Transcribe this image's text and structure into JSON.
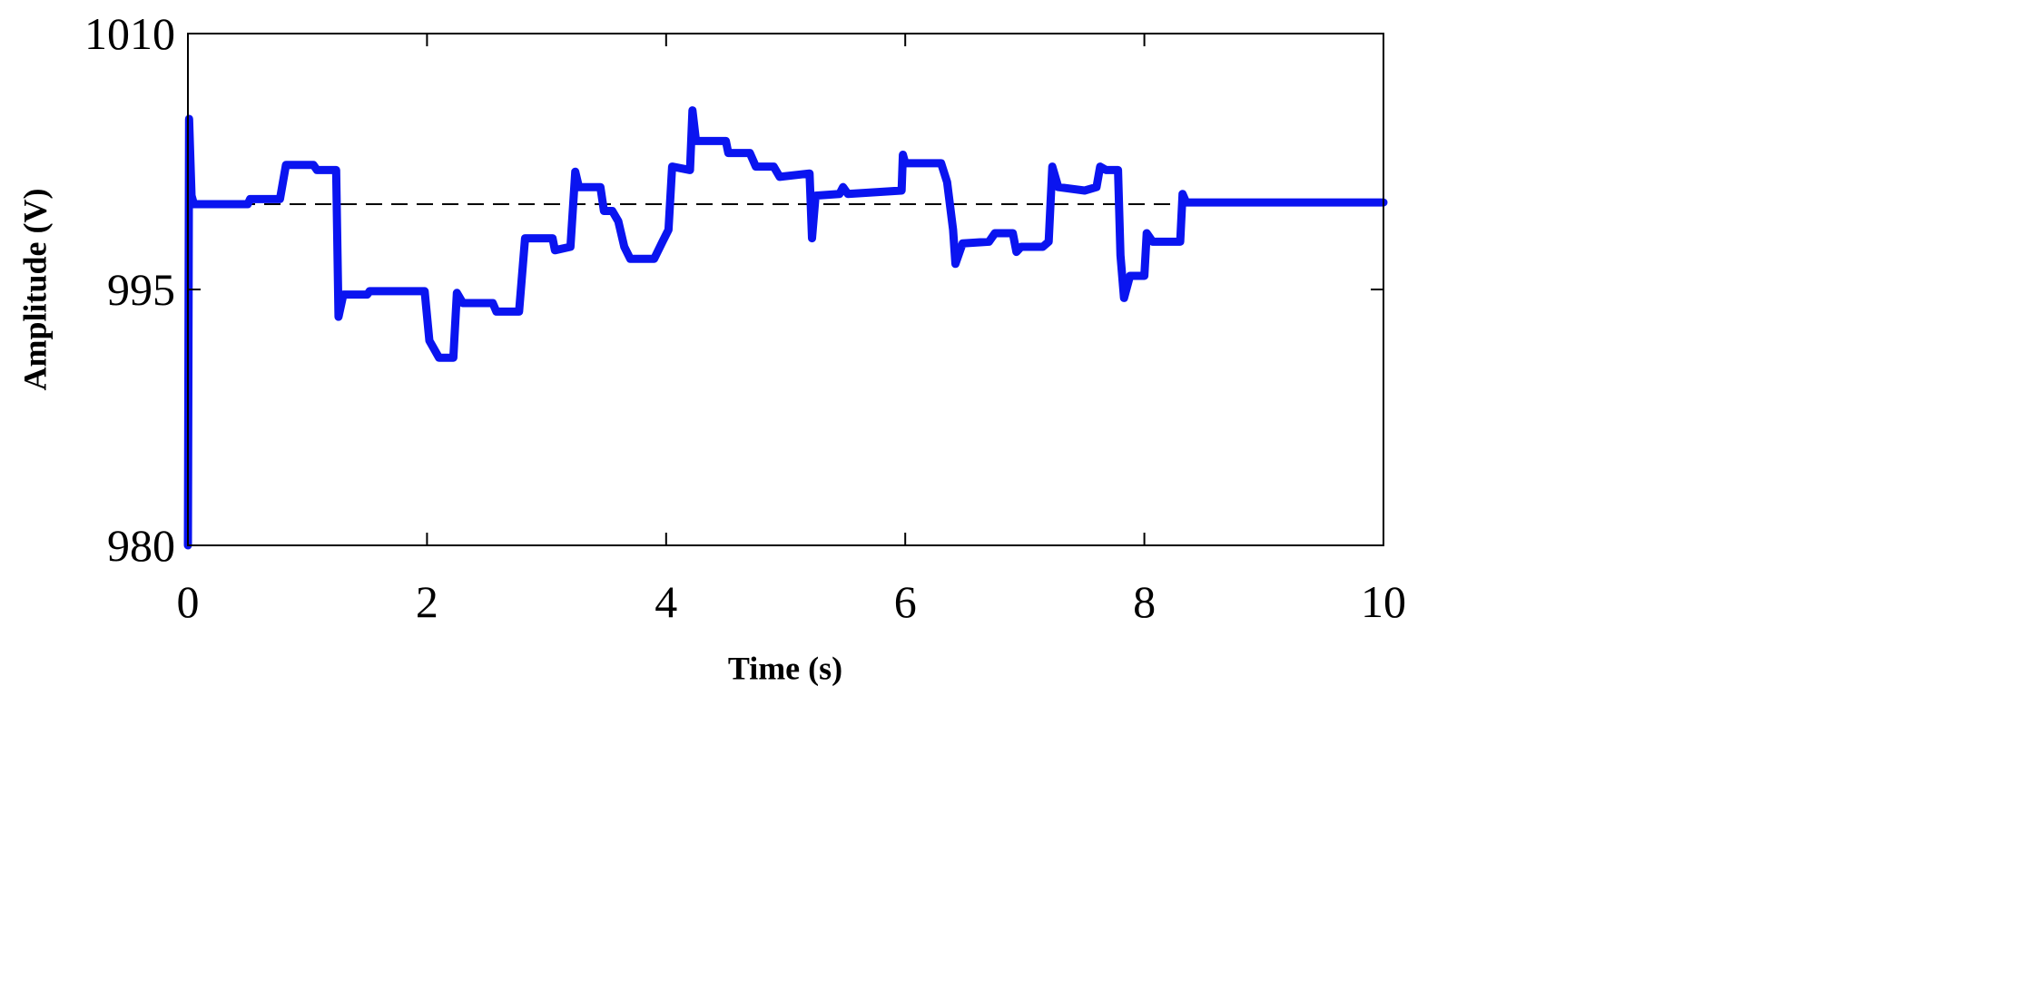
{
  "chart_data": {
    "type": "line",
    "xlabel": "Time (s)",
    "ylabel": "Amplitude (V)",
    "xlim": [
      0,
      10
    ],
    "xticks": [
      0,
      2,
      4,
      6,
      8,
      10
    ],
    "ylim": [
      980,
      1010
    ],
    "yticks": [
      980,
      995,
      1010
    ],
    "reference_line": 1000,
    "x": [
      0,
      0.01,
      0.03,
      0.05,
      0.5,
      0.52,
      0.77,
      0.82,
      1.05,
      1.08,
      1.24,
      1.26,
      1.3,
      1.5,
      1.52,
      1.98,
      2.02,
      2.1,
      2.22,
      2.25,
      2.3,
      2.55,
      2.58,
      2.77,
      2.82,
      3.05,
      3.07,
      3.2,
      3.24,
      3.27,
      3.45,
      3.48,
      3.55,
      3.6,
      3.65,
      3.7,
      3.9,
      3.97,
      4.02,
      4.05,
      4.2,
      4.22,
      4.25,
      4.5,
      4.52,
      4.7,
      4.75,
      4.9,
      4.95,
      5.2,
      5.22,
      5.25,
      5.45,
      5.48,
      5.52,
      5.97,
      5.98,
      6.0,
      6.3,
      6.35,
      6.4,
      6.42,
      6.48,
      6.7,
      6.75,
      6.9,
      6.93,
      6.97,
      7.15,
      7.2,
      7.23,
      7.28,
      7.5,
      7.6,
      7.63,
      7.68,
      7.78,
      7.8,
      7.83,
      7.88,
      8.0,
      8.02,
      8.07,
      8.3,
      8.32,
      8.35,
      10
    ],
    "series": [
      {
        "color": "#0a14f0",
        "values": [
          980,
          1005,
          1000.5,
          1000,
          1000,
          1000.3,
          1000.3,
          1002.3,
          1002.3,
          1002,
          1002,
          993.4,
          994.7,
          994.7,
          994.9,
          994.9,
          992,
          991,
          991,
          994.8,
          994.2,
          994.2,
          993.7,
          993.7,
          998,
          998,
          997.3,
          997.5,
          1001.9,
          1001,
          1001,
          999.6,
          999.6,
          999,
          997.5,
          996.8,
          996.8,
          997.8,
          998.5,
          1002.2,
          1002,
          1005.5,
          1003.7,
          1003.7,
          1003,
          1003,
          1002.2,
          1002.2,
          1001.6,
          1001.8,
          998,
          1000.5,
          1000.6,
          1001,
          1000.6,
          1000.8,
          1002.9,
          1002.4,
          1002.4,
          1001.3,
          998.5,
          996.5,
          997.7,
          997.8,
          998.3,
          998.3,
          997.2,
          997.5,
          997.5,
          997.8,
          1002.2,
          1001,
          1000.8,
          1001,
          1002.2,
          1002,
          1002,
          997,
          994.5,
          995.8,
          995.8,
          998.3,
          997.8,
          997.8,
          1000.6,
          1000.1,
          1000.1
        ]
      }
    ]
  }
}
